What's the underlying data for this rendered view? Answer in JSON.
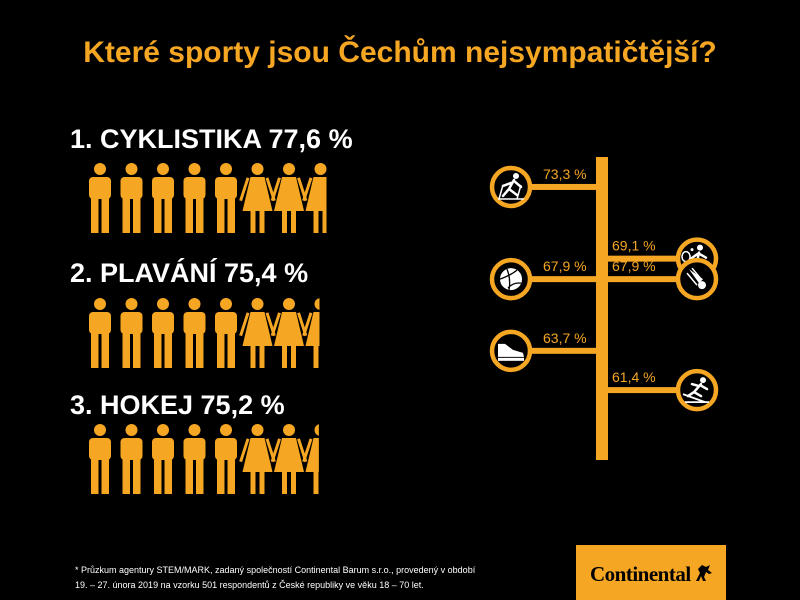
{
  "title": "Které sporty jsou Čechům nejsympatičtější?",
  "rankings": [
    {
      "label": "1. CYKLISTIKA 77,6 %",
      "percent": 77.6
    },
    {
      "label": "2. PLAVÁNÍ 75,4 %",
      "percent": 75.4
    },
    {
      "label": "3. HOKEJ 75,2 %",
      "percent": 75.2
    }
  ],
  "chart_data": {
    "type": "bar",
    "title": "",
    "xlabel": "",
    "ylabel": "",
    "categories": [
      "cross-country skiing",
      "tennis",
      "volleyball",
      "badminton",
      "running",
      "ski jumping"
    ],
    "values": [
      73.3,
      69.1,
      67.9,
      67.9,
      63.7,
      61.4
    ],
    "value_labels": [
      "73,3 %",
      "69,1 %",
      "67,9 %",
      "67,9 %",
      "63,7 %",
      "61,4 %"
    ],
    "sides": [
      "left",
      "right",
      "left",
      "right",
      "left",
      "right"
    ],
    "icons": [
      "cross-country-skiing-icon",
      "tennis-icon",
      "volleyball-icon",
      "badminton-icon",
      "running-shoe-icon",
      "ski-jumping-icon"
    ]
  },
  "footnote": {
    "line1": "* Průzkum agentury STEM/MARK, zadaný společností Continental Barum s.r.o., provedený v období",
    "line2": "19. – 27. února 2019 na vzorku 501 respondentů z České republiky ve věku 18 – 70 let."
  },
  "logo": {
    "text": "Continental"
  },
  "colors": {
    "accent": "#f5a623",
    "background": "#000000",
    "text": "#ffffff"
  }
}
